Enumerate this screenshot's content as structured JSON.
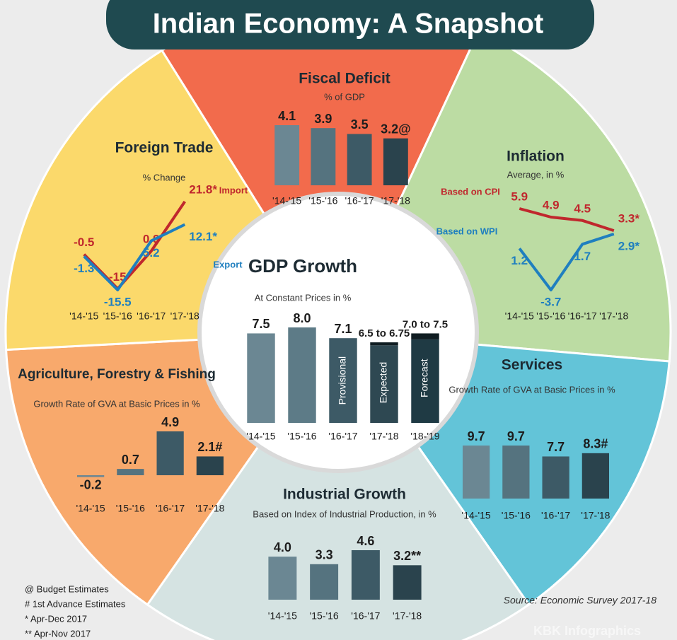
{
  "title": "Indian Economy: A Snapshot",
  "source": "Source: Economic Survey 2017-18",
  "credit": "KBK Infographics",
  "footnotes": [
    "@ Budget Estimates",
    "# 1st Advance Estimates",
    "* Apr-Dec 2017",
    "** Apr-Nov 2017"
  ],
  "chart_data": [
    {
      "type": "bar",
      "title": "Fiscal Deficit",
      "subtitle": "% of GDP",
      "categories": [
        "'14-'15",
        "'15-'16",
        "'16-'17",
        "'17-'18"
      ],
      "values": [
        4.1,
        3.9,
        3.5,
        3.2
      ],
      "value_labels": [
        "4.1",
        "3.9",
        "3.5",
        "3.2@"
      ],
      "colors": [
        "#6b8793",
        "#55737f",
        "#3d5a66",
        "#2a434d"
      ]
    },
    {
      "type": "line",
      "title": "Foreign Trade",
      "subtitle": "% Change",
      "categories": [
        "'14-'15",
        "'15-'16",
        "'16-'17",
        "'17-'18"
      ],
      "series": [
        {
          "name": "Import",
          "color": "#c0272d",
          "values": [
            -0.5,
            -15,
            0.9,
            21.8
          ],
          "value_labels": [
            "-0.5",
            "-15",
            "0.9",
            "21.8*"
          ]
        },
        {
          "name": "Export",
          "color": "#1f7fbf",
          "values": [
            -1.3,
            -15.5,
            5.2,
            12.1
          ],
          "value_labels": [
            "-1.3",
            "-15.5",
            "5.2",
            "12.1*"
          ]
        }
      ]
    },
    {
      "type": "line",
      "title": "Inflation",
      "subtitle": "Average, in %",
      "categories": [
        "'14-'15",
        "'15-'16",
        "'16-'17",
        "'17-'18"
      ],
      "series": [
        {
          "name": "Based on CPI",
          "color": "#c0272d",
          "values": [
            5.9,
            4.9,
            4.5,
            3.3
          ],
          "value_labels": [
            "5.9",
            "4.9",
            "4.5",
            "3.3*"
          ]
        },
        {
          "name": "Based on WPI",
          "color": "#1f7fbf",
          "values": [
            1.2,
            -3.7,
            1.7,
            2.9
          ],
          "value_labels": [
            "1.2",
            "-3.7",
            "1.7",
            "2.9*"
          ]
        }
      ]
    },
    {
      "type": "bar",
      "title": "GDP Growth",
      "subtitle": "At Constant Prices in %",
      "categories": [
        "'14-'15",
        "'15-'16",
        "'16-'17",
        "'17-'18",
        "'18-'19"
      ],
      "values": [
        7.5,
        8.0,
        7.1,
        6.5,
        7.0
      ],
      "high": [
        null,
        null,
        null,
        6.75,
        7.5
      ],
      "value_labels": [
        "7.5",
        "8.0",
        "7.1",
        "6.5 to 6.75",
        "7.0 to 7.5"
      ],
      "bar_notes": [
        null,
        null,
        "Provisional",
        "Expected",
        "Forecast"
      ],
      "colors": [
        "#6b8793",
        "#5d7b87",
        "#3d5a66",
        "#2e4852",
        "#1f3a44"
      ]
    },
    {
      "type": "bar",
      "title": "Agriculture, Forestry & Fishing",
      "subtitle": "Growth Rate of GVA at Basic Prices in %",
      "categories": [
        "'14-'15",
        "'15-'16",
        "'16-'17",
        "'17-'18"
      ],
      "values": [
        -0.2,
        0.7,
        4.9,
        2.1
      ],
      "value_labels": [
        "-0.2",
        "0.7",
        "4.9",
        "2.1#"
      ],
      "colors": [
        "#6b8793",
        "#55737f",
        "#3d5a66",
        "#2a434d"
      ]
    },
    {
      "type": "bar",
      "title": "Industrial Growth",
      "subtitle": "Based on Index of Industrial Production, in %",
      "categories": [
        "'14-'15",
        "'15-'16",
        "'16-'17",
        "'17-'18"
      ],
      "values": [
        4.0,
        3.3,
        4.6,
        3.2
      ],
      "value_labels": [
        "4.0",
        "3.3",
        "4.6",
        "3.2**"
      ],
      "colors": [
        "#6b8793",
        "#55737f",
        "#3d5a66",
        "#2a434d"
      ]
    },
    {
      "type": "bar",
      "title": "Services",
      "subtitle": "Growth Rate of GVA at Basic Prices in %",
      "categories": [
        "'14-'15",
        "'15-'16",
        "'16-'17",
        "'17-'18"
      ],
      "values": [
        9.7,
        9.7,
        7.7,
        8.3
      ],
      "value_labels": [
        "9.7",
        "9.7",
        "7.7",
        "8.3#"
      ],
      "colors": [
        "#6b8793",
        "#55737f",
        "#3d5a66",
        "#2a434d"
      ]
    }
  ]
}
